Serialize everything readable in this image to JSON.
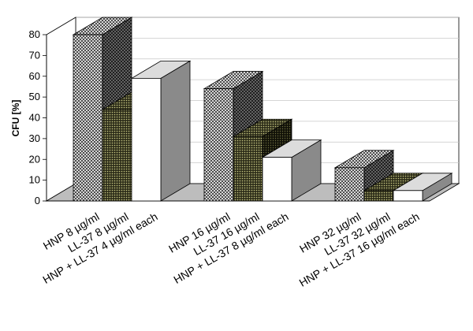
{
  "chart_data": {
    "type": "bar",
    "style": "3d-clustered-column",
    "xlabel": "",
    "ylabel": "CFU [%]",
    "ylim": [
      0,
      80
    ],
    "yticks": [
      0,
      10,
      20,
      30,
      40,
      50,
      60,
      70,
      80
    ],
    "grid": true,
    "legend": "none",
    "bars": [
      {
        "label": "HNP 8 µg/ml",
        "value": 80,
        "pattern": "crosshatch"
      },
      {
        "label": "LL-37 8 µg/ml",
        "value": 44,
        "pattern": "dots"
      },
      {
        "label": "HNP + LL-37 4 µg/ml each",
        "value": 59,
        "pattern": "white"
      },
      {
        "label": "HNP 16 µg/ml",
        "value": 54,
        "pattern": "crosshatch"
      },
      {
        "label": "LL-37 16 µg/ml",
        "value": 31,
        "pattern": "dots"
      },
      {
        "label": "HNP + LL-37 8 µg/ml each",
        "value": 21,
        "pattern": "white"
      },
      {
        "label": "HNP 32 µg/ml",
        "value": 16,
        "pattern": "crosshatch"
      },
      {
        "label": "LL-37 32 µg/ml",
        "value": 5,
        "pattern": "dots"
      },
      {
        "label": "HNP + LL-37 16 µg/ml each",
        "value": 5,
        "pattern": "white"
      }
    ],
    "colors": {
      "crosshatch": "#8a8a8a",
      "dots": "#3a3a22",
      "white": "#ffffff",
      "floor": "#bdbdbd",
      "grid": "#c8c8c8"
    }
  }
}
